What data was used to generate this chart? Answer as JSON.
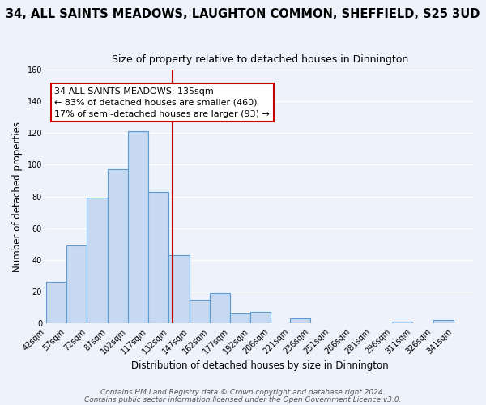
{
  "title": "34, ALL SAINTS MEADOWS, LAUGHTON COMMON, SHEFFIELD, S25 3UD",
  "subtitle": "Size of property relative to detached houses in Dinnington",
  "xlabel": "Distribution of detached houses by size in Dinnington",
  "ylabel": "Number of detached properties",
  "bin_edges": [
    42,
    57,
    72,
    87,
    102,
    117,
    132,
    147,
    162,
    177,
    192,
    206,
    221,
    236,
    251,
    266,
    281,
    296,
    311,
    326,
    341
  ],
  "bar_heights": [
    26,
    49,
    79,
    97,
    121,
    83,
    43,
    15,
    19,
    6,
    7,
    0,
    3,
    0,
    0,
    0,
    0,
    1,
    0,
    2
  ],
  "bar_color": "#c6d9f0",
  "bar_edge_color": "#5b9bd5",
  "vline_x": 135,
  "vline_color": "#cc0000",
  "ylim": [
    0,
    160
  ],
  "yticks": [
    0,
    20,
    40,
    60,
    80,
    100,
    120,
    140,
    160
  ],
  "annotation_line1": "34 ALL SAINTS MEADOWS: 135sqm",
  "annotation_line2": "← 83% of detached houses are smaller (460)",
  "annotation_line3": "17% of semi-detached houses are larger (93) →",
  "footer_line1": "Contains HM Land Registry data © Crown copyright and database right 2024.",
  "footer_line2": "Contains public sector information licensed under the Open Government Licence v3.0.",
  "background_color": "#eef2fa",
  "grid_color": "#ffffff",
  "title_fontsize": 10.5,
  "subtitle_fontsize": 9,
  "tick_label_fontsize": 7,
  "axis_label_fontsize": 8.5,
  "annotation_fontsize": 8,
  "footer_fontsize": 6.5
}
